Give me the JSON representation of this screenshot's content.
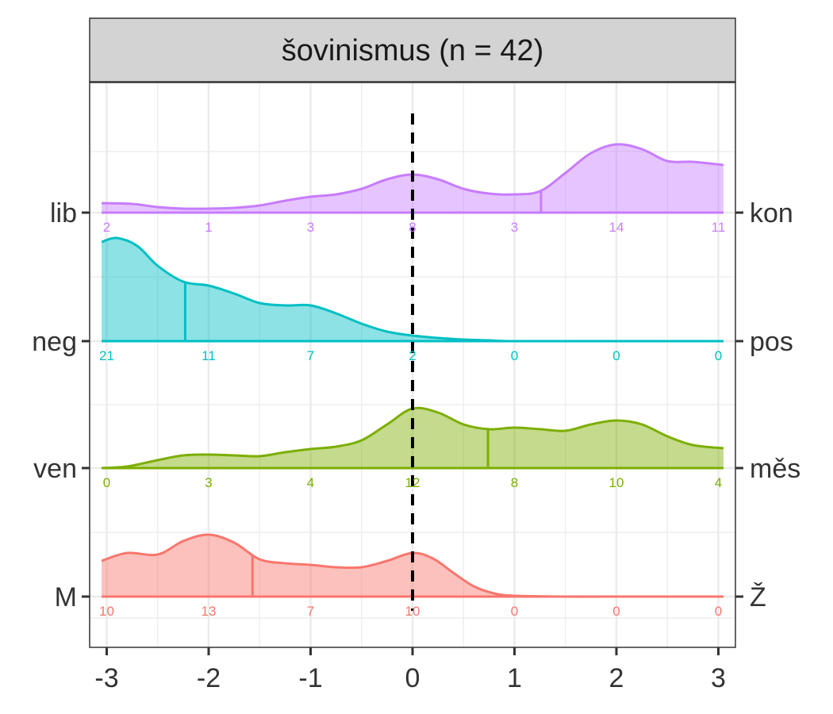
{
  "chart_data": {
    "type": "area",
    "title": "šovinismus (n = 42)",
    "xlabel": "",
    "ylabel": "",
    "x_ticks": [
      -3,
      -2,
      -1,
      0,
      1,
      2,
      3
    ],
    "x_range": [
      -3.1,
      3.1
    ],
    "reference_line_x": 0,
    "count_positions": [
      -3,
      -2,
      -1,
      0,
      1,
      2,
      3
    ],
    "grid": true,
    "series": [
      {
        "left_label": "M",
        "right_label": "Ž",
        "color": "#F8766D",
        "mean": -1.57,
        "counts": [
          10,
          13,
          7,
          10,
          0,
          0,
          0
        ],
        "density": [
          [
            -3.05,
            0.45
          ],
          [
            -2.8,
            0.55
          ],
          [
            -2.5,
            0.53
          ],
          [
            -2.25,
            0.7
          ],
          [
            -2.0,
            0.78
          ],
          [
            -1.75,
            0.68
          ],
          [
            -1.5,
            0.47
          ],
          [
            -1.25,
            0.42
          ],
          [
            -1.0,
            0.4
          ],
          [
            -0.75,
            0.37
          ],
          [
            -0.5,
            0.37
          ],
          [
            -0.25,
            0.45
          ],
          [
            0.0,
            0.55
          ],
          [
            0.2,
            0.48
          ],
          [
            0.4,
            0.3
          ],
          [
            0.6,
            0.13
          ],
          [
            0.8,
            0.04
          ],
          [
            1.0,
            0.01
          ],
          [
            1.5,
            0.0
          ],
          [
            2.0,
            0.0
          ],
          [
            3.05,
            0.0
          ]
        ]
      },
      {
        "left_label": "ven",
        "right_label": "měs",
        "color": "#7CAE00",
        "mean": 0.74,
        "counts": [
          0,
          3,
          4,
          12,
          8,
          10,
          4
        ],
        "density": [
          [
            -3.05,
            0.0
          ],
          [
            -2.8,
            0.02
          ],
          [
            -2.5,
            0.1
          ],
          [
            -2.25,
            0.16
          ],
          [
            -2.0,
            0.17
          ],
          [
            -1.75,
            0.16
          ],
          [
            -1.5,
            0.15
          ],
          [
            -1.25,
            0.2
          ],
          [
            -1.0,
            0.24
          ],
          [
            -0.75,
            0.27
          ],
          [
            -0.5,
            0.35
          ],
          [
            -0.25,
            0.55
          ],
          [
            0.0,
            0.75
          ],
          [
            0.25,
            0.7
          ],
          [
            0.5,
            0.55
          ],
          [
            0.75,
            0.49
          ],
          [
            1.0,
            0.51
          ],
          [
            1.25,
            0.49
          ],
          [
            1.5,
            0.47
          ],
          [
            1.75,
            0.55
          ],
          [
            2.0,
            0.6
          ],
          [
            2.25,
            0.55
          ],
          [
            2.5,
            0.4
          ],
          [
            2.75,
            0.29
          ],
          [
            3.05,
            0.25
          ]
        ]
      },
      {
        "left_label": "neg",
        "right_label": "pos",
        "color": "#00BFC4",
        "mean": -2.23,
        "counts": [
          21,
          11,
          7,
          2,
          0,
          0,
          0
        ],
        "density": [
          [
            -3.05,
            1.25
          ],
          [
            -2.9,
            1.3
          ],
          [
            -2.7,
            1.2
          ],
          [
            -2.5,
            0.95
          ],
          [
            -2.25,
            0.75
          ],
          [
            -2.0,
            0.7
          ],
          [
            -1.75,
            0.6
          ],
          [
            -1.5,
            0.48
          ],
          [
            -1.25,
            0.45
          ],
          [
            -1.0,
            0.45
          ],
          [
            -0.75,
            0.35
          ],
          [
            -0.5,
            0.22
          ],
          [
            -0.25,
            0.12
          ],
          [
            0.0,
            0.07
          ],
          [
            0.25,
            0.04
          ],
          [
            0.5,
            0.02
          ],
          [
            0.75,
            0.01
          ],
          [
            1.0,
            0.0
          ],
          [
            2.0,
            0.0
          ],
          [
            3.05,
            0.0
          ]
        ]
      },
      {
        "left_label": "lib",
        "right_label": "kon",
        "color": "#C77CFF",
        "mean": 1.26,
        "counts": [
          2,
          1,
          3,
          8,
          3,
          14,
          11
        ],
        "density": [
          [
            -3.05,
            0.12
          ],
          [
            -2.75,
            0.11
          ],
          [
            -2.5,
            0.07
          ],
          [
            -2.25,
            0.05
          ],
          [
            -2.0,
            0.05
          ],
          [
            -1.75,
            0.06
          ],
          [
            -1.5,
            0.09
          ],
          [
            -1.25,
            0.15
          ],
          [
            -1.0,
            0.2
          ],
          [
            -0.75,
            0.23
          ],
          [
            -0.5,
            0.3
          ],
          [
            -0.25,
            0.42
          ],
          [
            0.0,
            0.48
          ],
          [
            0.25,
            0.42
          ],
          [
            0.5,
            0.3
          ],
          [
            0.75,
            0.24
          ],
          [
            1.0,
            0.23
          ],
          [
            1.25,
            0.27
          ],
          [
            1.5,
            0.5
          ],
          [
            1.75,
            0.75
          ],
          [
            2.0,
            0.86
          ],
          [
            2.25,
            0.8
          ],
          [
            2.5,
            0.65
          ],
          [
            2.75,
            0.64
          ],
          [
            3.05,
            0.6
          ]
        ]
      }
    ]
  }
}
